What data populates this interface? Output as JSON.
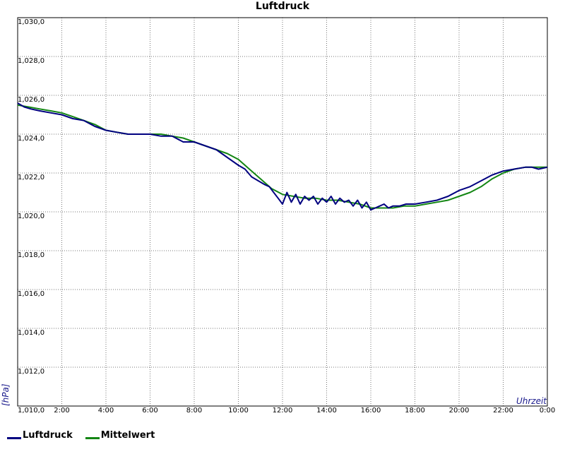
{
  "chart_data": {
    "type": "line",
    "title": "Luftdruck",
    "ylabel": "[hPa]",
    "xlabel": "Uhrzeit",
    "ylim": [
      1010.0,
      1030.0
    ],
    "xlim": [
      0,
      24
    ],
    "grid": true,
    "legend_position": "bottom-left",
    "y_ticks": [
      "1,010,0",
      "1,012,0",
      "1,014,0",
      "1,016,0",
      "1,018,0",
      "1,020,0",
      "1,022,0",
      "1,024,0",
      "1,026,0",
      "1,028,0",
      "1,030,0"
    ],
    "x_ticks": [
      "2:00",
      "4:00",
      "6:00",
      "8:00",
      "10:00",
      "12:00",
      "14:00",
      "16:00",
      "18:00",
      "20:00",
      "22:00",
      "0:00"
    ],
    "x_tick_hours": [
      2,
      4,
      6,
      8,
      10,
      12,
      14,
      16,
      18,
      20,
      22,
      24
    ],
    "y_tick_values": [
      1010,
      1012,
      1014,
      1016,
      1018,
      1020,
      1022,
      1024,
      1026,
      1028,
      1030
    ],
    "series": [
      {
        "name": "Luftdruck",
        "color": "#000080",
        "x": [
          0,
          0.3,
          0.6,
          1,
          1.5,
          2,
          2.5,
          3,
          3.5,
          4,
          4.5,
          5,
          5.5,
          6,
          6.5,
          7,
          7.5,
          8,
          8.5,
          9,
          9.5,
          10,
          10.3,
          10.6,
          10.9,
          11.2,
          11.4,
          11.6,
          11.8,
          12.0,
          12.2,
          12.4,
          12.6,
          12.8,
          13.0,
          13.2,
          13.4,
          13.6,
          13.8,
          14.0,
          14.2,
          14.4,
          14.6,
          14.8,
          15.0,
          15.2,
          15.4,
          15.6,
          15.8,
          16.0,
          16.2,
          16.4,
          16.6,
          16.8,
          17.0,
          17.3,
          17.6,
          18.0,
          18.5,
          19,
          19.5,
          20,
          20.5,
          21,
          21.5,
          22,
          22.5,
          23,
          23.3,
          23.6,
          24
        ],
        "values": [
          1025.6,
          1025.4,
          1025.3,
          1025.2,
          1025.1,
          1025.0,
          1024.8,
          1024.7,
          1024.4,
          1024.2,
          1024.1,
          1024.0,
          1024.0,
          1024.0,
          1023.9,
          1023.9,
          1023.6,
          1023.6,
          1023.4,
          1023.2,
          1022.8,
          1022.4,
          1022.2,
          1021.8,
          1021.6,
          1021.4,
          1021.3,
          1021.0,
          1020.7,
          1020.4,
          1021.0,
          1020.5,
          1020.9,
          1020.4,
          1020.8,
          1020.6,
          1020.8,
          1020.4,
          1020.7,
          1020.5,
          1020.8,
          1020.4,
          1020.7,
          1020.5,
          1020.6,
          1020.3,
          1020.6,
          1020.2,
          1020.5,
          1020.1,
          1020.2,
          1020.3,
          1020.4,
          1020.2,
          1020.3,
          1020.3,
          1020.4,
          1020.4,
          1020.5,
          1020.6,
          1020.8,
          1021.1,
          1021.3,
          1021.6,
          1021.9,
          1022.1,
          1022.2,
          1022.3,
          1022.3,
          1022.2,
          1022.3
        ]
      },
      {
        "name": "Mittelwert",
        "color": "#138613",
        "x": [
          0,
          0.5,
          1,
          1.5,
          2,
          2.5,
          3,
          3.5,
          4,
          4.5,
          5,
          5.5,
          6,
          6.5,
          7,
          7.5,
          8,
          8.5,
          9,
          9.5,
          10,
          10.5,
          11,
          11.5,
          12,
          12.5,
          13,
          13.5,
          14,
          14.5,
          15,
          15.5,
          16,
          16.5,
          17,
          17.5,
          18,
          18.5,
          19,
          19.5,
          20,
          20.5,
          21,
          21.5,
          22,
          22.5,
          23,
          23.5,
          24
        ],
        "values": [
          1025.5,
          1025.4,
          1025.3,
          1025.2,
          1025.1,
          1024.9,
          1024.7,
          1024.5,
          1024.2,
          1024.1,
          1024.0,
          1024.0,
          1024.0,
          1024.0,
          1023.9,
          1023.8,
          1023.6,
          1023.4,
          1023.2,
          1023.0,
          1022.7,
          1022.2,
          1021.7,
          1021.2,
          1020.9,
          1020.8,
          1020.7,
          1020.7,
          1020.6,
          1020.6,
          1020.5,
          1020.4,
          1020.2,
          1020.2,
          1020.2,
          1020.3,
          1020.3,
          1020.4,
          1020.5,
          1020.6,
          1020.8,
          1021.0,
          1021.3,
          1021.7,
          1022.0,
          1022.2,
          1022.3,
          1022.3,
          1022.3
        ]
      }
    ]
  }
}
